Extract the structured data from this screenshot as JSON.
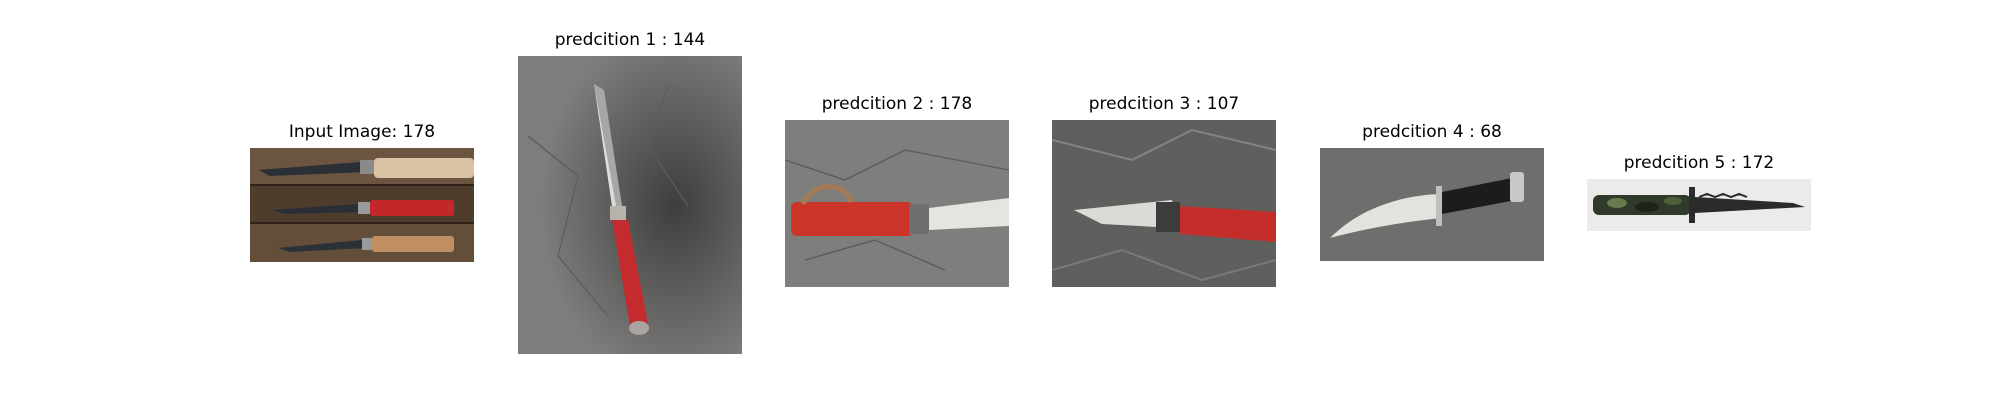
{
  "figure": {
    "panels": [
      {
        "title": "Input Image: 178",
        "image": "knife-three-opinel-on-wood"
      },
      {
        "title": "predcition 1 : 144",
        "image": "knife-red-handled-on-concrete"
      },
      {
        "title": "predcition 2 : 178",
        "image": "knife-red-opinel-on-concrete"
      },
      {
        "title": "predcition 3 : 107",
        "image": "knife-red-handle-on-gray-floor"
      },
      {
        "title": "predcition 4 : 68",
        "image": "knife-bowie-black-handle"
      },
      {
        "title": "predcition 5 : 172",
        "image": "knife-camo-serrated"
      }
    ]
  }
}
